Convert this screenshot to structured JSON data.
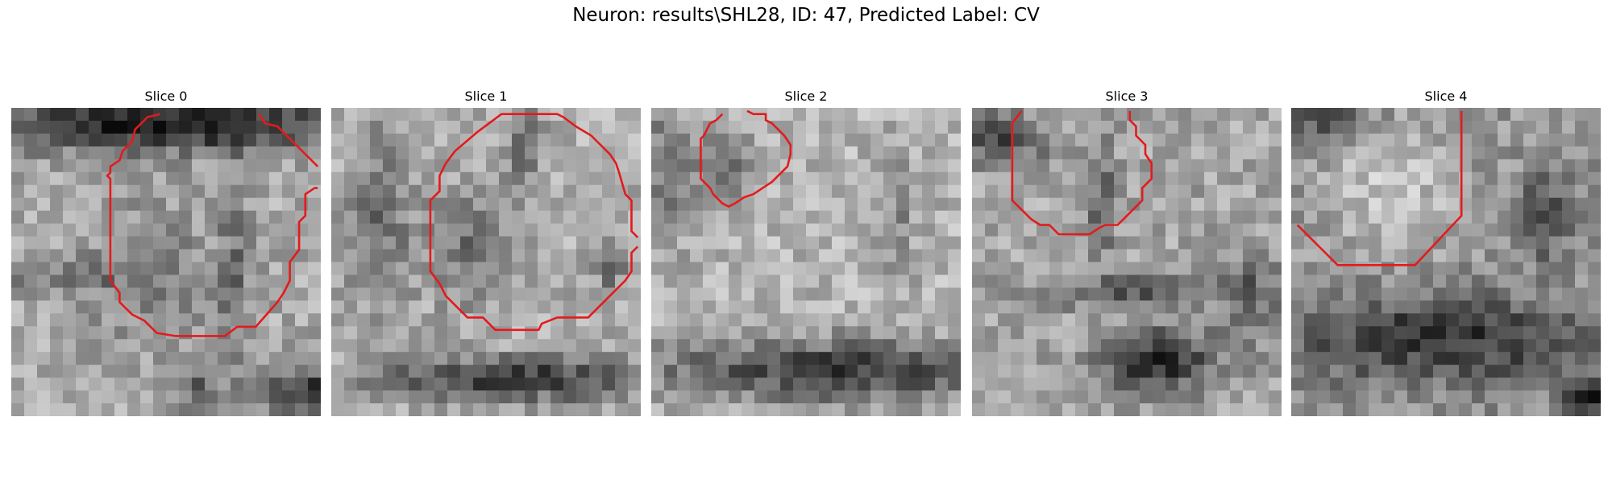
{
  "figure": {
    "title": "Neuron: results\\SHL28, ID: 47, Predicted Label: CV"
  },
  "panels": [
    {
      "title": "Slice 0"
    },
    {
      "title": "Slice 1"
    },
    {
      "title": "Slice 2"
    },
    {
      "title": "Slice 3"
    },
    {
      "title": "Slice 4"
    }
  ],
  "colors": {
    "contour": "#e41a1c",
    "background": "#ffffff"
  }
}
